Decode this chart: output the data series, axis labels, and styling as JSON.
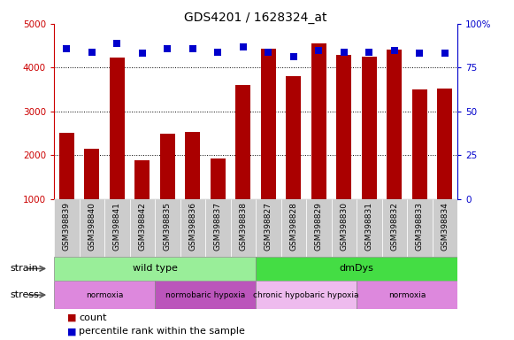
{
  "title": "GDS4201 / 1628324_at",
  "samples": [
    "GSM398839",
    "GSM398840",
    "GSM398841",
    "GSM398842",
    "GSM398835",
    "GSM398836",
    "GSM398837",
    "GSM398838",
    "GSM398827",
    "GSM398828",
    "GSM398829",
    "GSM398830",
    "GSM398831",
    "GSM398832",
    "GSM398833",
    "GSM398834"
  ],
  "counts": [
    2500,
    2150,
    4220,
    1880,
    2480,
    2530,
    1920,
    3600,
    4430,
    3800,
    4550,
    4280,
    4250,
    4420,
    3500,
    3520
  ],
  "percentiles": [
    86,
    84,
    89,
    83,
    86,
    86,
    84,
    87,
    84,
    81,
    85,
    84,
    84,
    85,
    83,
    83
  ],
  "bar_color": "#aa0000",
  "dot_color": "#0000cc",
  "ylim_left": [
    1000,
    5000
  ],
  "ylim_right": [
    0,
    100
  ],
  "yticks_left": [
    1000,
    2000,
    3000,
    4000,
    5000
  ],
  "yticks_right": [
    0,
    25,
    50,
    75,
    100
  ],
  "grid_lines": [
    2000,
    3000,
    4000
  ],
  "strain_groups": [
    {
      "label": "wild type",
      "start": 0,
      "end": 8,
      "color": "#99ee99"
    },
    {
      "label": "dmDys",
      "start": 8,
      "end": 16,
      "color": "#44dd44"
    }
  ],
  "stress_groups": [
    {
      "label": "normoxia",
      "start": 0,
      "end": 4,
      "color": "#dd88dd"
    },
    {
      "label": "normobaric hypoxia",
      "start": 4,
      "end": 8,
      "color": "#bb55bb"
    },
    {
      "label": "chronic hypobaric hypoxia",
      "start": 8,
      "end": 12,
      "color": "#eebbee"
    },
    {
      "label": "normoxia",
      "start": 12,
      "end": 16,
      "color": "#dd88dd"
    }
  ],
  "legend_count_label": "count",
  "legend_pct_label": "percentile rank within the sample",
  "bar_width": 0.6,
  "axis_color_left": "#cc0000",
  "axis_color_right": "#0000cc",
  "tick_bg_color": "#cccccc",
  "separator_color": "#888888"
}
